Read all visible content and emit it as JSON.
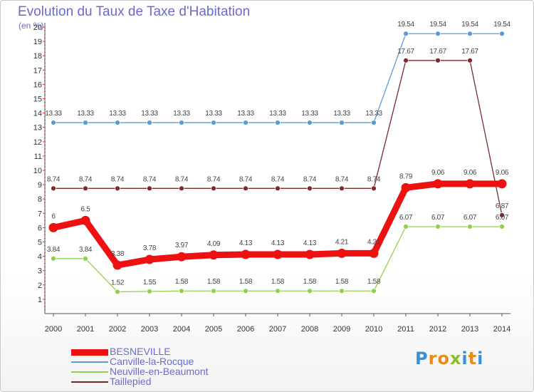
{
  "title": "Evolution du Taux de Taxe d'Habitation",
  "unit": "(en %)",
  "brand": {
    "letters": [
      "P",
      "r",
      "o",
      "x",
      "i",
      "t",
      "i"
    ],
    "colors": [
      "#3a8fd6",
      "#e58c1b",
      "#e58c1b",
      "#88bf2f",
      "#3a8fd6",
      "#e58c1b",
      "#3a8fd6"
    ]
  },
  "chart_data": {
    "type": "line",
    "title": "Evolution du Taux de Taxe d'Habitation",
    "ylabel": "(en %)",
    "xlabel": "",
    "x": [
      "2000",
      "2001",
      "2002",
      "2003",
      "2004",
      "2005",
      "2006",
      "2007",
      "2008",
      "2009",
      "2010",
      "2011",
      "2012",
      "2013",
      "2014"
    ],
    "ylim": [
      0,
      20
    ],
    "yticks": [
      "1",
      "2",
      "3",
      "4",
      "5",
      "6",
      "7",
      "8",
      "9",
      "10",
      "11",
      "12",
      "13",
      "14",
      "15",
      "16",
      "17",
      "18",
      "19",
      "20"
    ],
    "grid": false,
    "legend_position": "bottom-left",
    "series": [
      {
        "name": "BESNEVILLE",
        "color": "#ee1111",
        "emphasis": true,
        "values": [
          6,
          6.5,
          3.38,
          3.78,
          3.97,
          4.09,
          4.13,
          4.13,
          4.13,
          4.21,
          4.21,
          8.79,
          9.06,
          9.06,
          9.06
        ],
        "labels": [
          "6",
          "6.5",
          "3.38",
          "3.78",
          "3.97",
          "4.09",
          "4.13",
          "4.13",
          "4.13",
          "4.21",
          "4.21",
          "8.79",
          "9.06",
          "9.06",
          "9.06"
        ]
      },
      {
        "name": "Canville-la-Rocque",
        "color": "#5b9bd5",
        "emphasis": false,
        "values": [
          13.33,
          13.33,
          13.33,
          13.33,
          13.33,
          13.33,
          13.33,
          13.33,
          13.33,
          13.33,
          13.33,
          19.54,
          19.54,
          19.54,
          19.54
        ],
        "labels": [
          "13.33",
          "13.33",
          "13.33",
          "13.33",
          "13.33",
          "13.33",
          "13.33",
          "13.33",
          "13.33",
          "13.33",
          "13.33",
          "19.54",
          "19.54",
          "19.54",
          "19.54"
        ]
      },
      {
        "name": "Neuville-en-Beaumont",
        "color": "#8fd14f",
        "emphasis": false,
        "values": [
          3.84,
          3.84,
          1.52,
          1.55,
          1.58,
          1.58,
          1.58,
          1.58,
          1.58,
          1.58,
          1.58,
          6.07,
          6.07,
          6.07,
          6.07
        ],
        "labels": [
          "3.84",
          "3.84",
          "1.52",
          "1.55",
          "1.58",
          "1.58",
          "1.58",
          "1.58",
          "1.58",
          "1.58",
          "1.58",
          "6.07",
          "6.07",
          "6.07",
          "6.07"
        ]
      },
      {
        "name": "Taillepied",
        "color": "#7a2a2a",
        "emphasis": false,
        "values": [
          8.74,
          8.74,
          8.74,
          8.74,
          8.74,
          8.74,
          8.74,
          8.74,
          8.74,
          8.74,
          8.74,
          17.67,
          17.67,
          17.67,
          6.87
        ],
        "labels": [
          "8.74",
          "8.74",
          "8.74",
          "8.74",
          "8.74",
          "8.74",
          "8.74",
          "8.74",
          "8.74",
          "8.74",
          "8.74",
          "17.67",
          "17.67",
          "17.67",
          "6.87"
        ]
      }
    ]
  }
}
